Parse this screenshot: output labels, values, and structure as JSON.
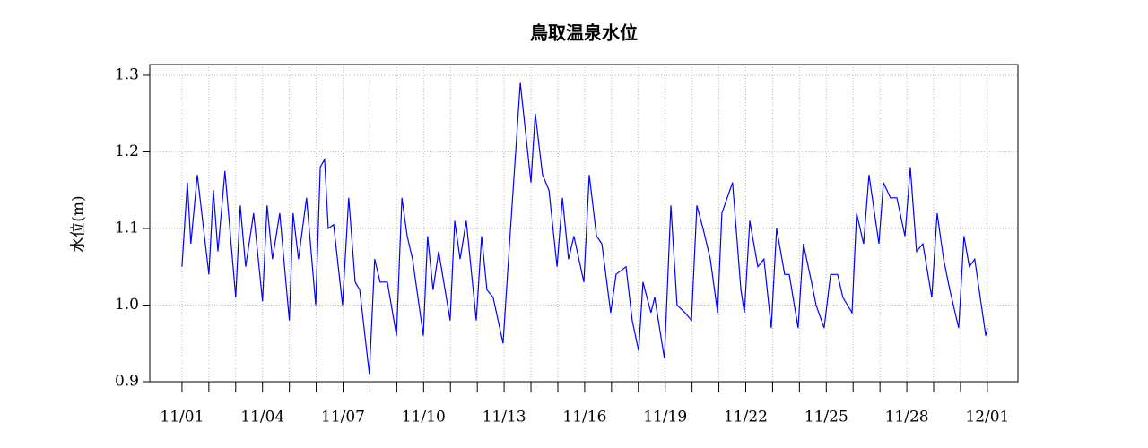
{
  "chart_data": {
    "type": "line",
    "title": "鳥取温泉水位",
    "y_label": "水位(m)",
    "x": [
      0,
      0.2,
      0.33,
      0.57,
      1.0,
      1.17,
      1.34,
      1.6,
      2.0,
      2.17,
      2.37,
      2.67,
      3.0,
      3.17,
      3.37,
      3.64,
      4.0,
      4.14,
      4.34,
      4.64,
      4.98,
      5.15,
      5.31,
      5.45,
      5.65,
      5.98,
      6.21,
      6.45,
      6.62,
      6.98,
      7.18,
      7.38,
      7.65,
      7.99,
      8.19,
      8.39,
      8.59,
      8.99,
      9.15,
      9.35,
      9.56,
      9.99,
      10.16,
      10.36,
      10.59,
      10.96,
      11.16,
      11.36,
      11.59,
      11.96,
      12.2,
      12.6,
      13.0,
      13.16,
      13.43,
      13.67,
      13.97,
      14.17,
      14.4,
      14.6,
      14.97,
      15.17,
      15.44,
      15.64,
      15.97,
      16.17,
      16.54,
      16.77,
      17.01,
      17.17,
      17.47,
      17.61,
      17.97,
      18.21,
      18.44,
      18.74,
      18.98,
      19.18,
      19.41,
      19.68,
      19.95,
      20.11,
      20.51,
      20.82,
      20.95,
      21.15,
      21.45,
      21.68,
      21.95,
      22.15,
      22.45,
      22.62,
      22.95,
      23.15,
      23.45,
      23.62,
      23.92,
      24.16,
      24.42,
      24.62,
      24.96,
      25.13,
      25.39,
      25.59,
      25.96,
      26.13,
      26.39,
      26.63,
      26.93,
      27.13,
      27.36,
      27.6,
      27.93,
      28.13,
      28.37,
      28.6,
      28.93,
      29.13,
      29.33,
      29.53,
      29.94,
      30
    ],
    "series": [
      {
        "name": "水位",
        "color": "#0000ff",
        "values": [
          1.05,
          1.16,
          1.08,
          1.17,
          1.04,
          1.15,
          1.07,
          1.175,
          1.01,
          1.13,
          1.05,
          1.12,
          1.005,
          1.13,
          1.06,
          1.12,
          0.98,
          1.12,
          1.06,
          1.14,
          1.0,
          1.18,
          1.19,
          1.1,
          1.105,
          1.0,
          1.14,
          1.03,
          1.02,
          0.91,
          1.06,
          1.03,
          1.03,
          0.96,
          1.14,
          1.09,
          1.06,
          0.96,
          1.09,
          1.02,
          1.07,
          0.98,
          1.11,
          1.06,
          1.11,
          0.98,
          1.09,
          1.02,
          1.01,
          0.95,
          1.08,
          1.29,
          1.16,
          1.25,
          1.17,
          1.15,
          1.05,
          1.14,
          1.06,
          1.09,
          1.03,
          1.17,
          1.09,
          1.08,
          0.99,
          1.04,
          1.05,
          0.98,
          0.94,
          1.03,
          0.99,
          1.01,
          0.93,
          1.13,
          1.0,
          0.99,
          0.98,
          1.13,
          1.1,
          1.06,
          0.99,
          1.12,
          1.16,
          1.02,
          0.99,
          1.11,
          1.05,
          1.06,
          0.97,
          1.1,
          1.04,
          1.04,
          0.97,
          1.08,
          1.03,
          1.0,
          0.97,
          1.04,
          1.04,
          1.01,
          0.99,
          1.12,
          1.08,
          1.17,
          1.08,
          1.16,
          1.14,
          1.14,
          1.09,
          1.18,
          1.07,
          1.08,
          1.01,
          1.12,
          1.06,
          1.02,
          0.97,
          1.09,
          1.05,
          1.06,
          0.96,
          0.97
        ]
      }
    ],
    "xlim": [
      -1.2,
      31.14
    ],
    "xticks": [
      {
        "value": 0,
        "label": "11/01"
      },
      {
        "value": 3,
        "label": "11/04"
      },
      {
        "value": 6,
        "label": "11/07"
      },
      {
        "value": 9,
        "label": "11/10"
      },
      {
        "value": 12,
        "label": "11/13"
      },
      {
        "value": 15,
        "label": "11/16"
      },
      {
        "value": 18,
        "label": "11/19"
      },
      {
        "value": 21,
        "label": "11/22"
      },
      {
        "value": 24,
        "label": "11/25"
      },
      {
        "value": 27,
        "label": "11/28"
      },
      {
        "value": 30,
        "label": "12/01"
      }
    ],
    "xminor_ticks": [
      1,
      2,
      4,
      5,
      7,
      8,
      10,
      11,
      13,
      14,
      16,
      17,
      19,
      20,
      22,
      23,
      25,
      26,
      28,
      29
    ],
    "ylim": [
      0.9,
      1.314
    ],
    "yticks": [
      0.9,
      {
        "value": 1,
        "label": "1.0"
      },
      1.1,
      1.2,
      1.3
    ],
    "grid": true
  }
}
